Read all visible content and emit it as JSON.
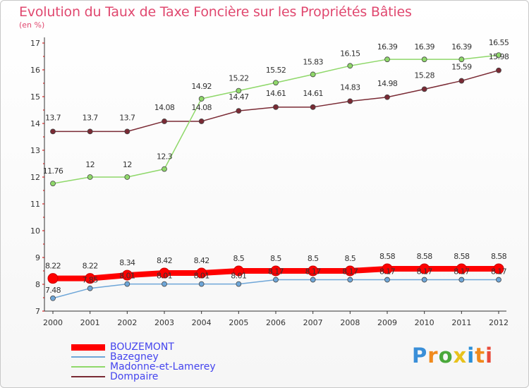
{
  "chart_data": {
    "type": "line",
    "title": "Evolution du Taux de Taxe Foncière sur les Propriétés Bâties",
    "subtitle": "(en %)",
    "x": [
      "2000",
      "2001",
      "2002",
      "2003",
      "2004",
      "2005",
      "2006",
      "2007",
      "2008",
      "2009",
      "2010",
      "2011",
      "2012"
    ],
    "ylim": [
      7,
      17
    ],
    "yticks": [
      "7",
      "8",
      "9",
      "10",
      "11",
      "12",
      "13",
      "14",
      "15",
      "16",
      "17"
    ],
    "grid": false,
    "legend_position": "bottom-left",
    "series": [
      {
        "name": "BOUZEMONT",
        "color": "#ff0000",
        "values": [
          8.22,
          8.22,
          8.34,
          8.42,
          8.42,
          8.5,
          8.5,
          8.5,
          8.5,
          8.58,
          8.58,
          8.58,
          8.58
        ],
        "labels": [
          "8.22",
          "8.22",
          "8.34",
          "8.42",
          "8.42",
          "8.5",
          "8.5",
          "8.5",
          "8.5",
          "8.58",
          "8.58",
          "8.58",
          "8.58"
        ]
      },
      {
        "name": "Bazegney",
        "color": "#6ea6d8",
        "values": [
          7.48,
          7.85,
          8.01,
          8.01,
          8.01,
          8.01,
          8.17,
          8.17,
          8.17,
          8.17,
          8.17,
          8.17,
          8.17
        ],
        "labels": [
          "7.48",
          "7.85",
          "8.01",
          "8.01",
          "8.01",
          "8.01",
          "8.17",
          "8.17",
          "8.17",
          "8.17",
          "8.17",
          "8.17",
          "8.17"
        ]
      },
      {
        "name": "Madonne-et-Lamerey",
        "color": "#8fd86a",
        "values": [
          11.76,
          12,
          12,
          12.3,
          14.92,
          15.22,
          15.52,
          15.83,
          16.15,
          16.39,
          16.39,
          16.39,
          16.55
        ],
        "labels": [
          "11.76",
          "12",
          "12",
          "12.3",
          "14.92",
          "15.22",
          "15.52",
          "15.83",
          "16.15",
          "16.39",
          "16.39",
          "16.39",
          "16.55"
        ]
      },
      {
        "name": "Dompaire",
        "color": "#7a2a34",
        "values": [
          13.7,
          13.7,
          13.7,
          14.08,
          14.08,
          14.47,
          14.61,
          14.61,
          14.83,
          14.98,
          15.28,
          15.59,
          15.98
        ],
        "labels": [
          "13.7",
          "13.7",
          "13.7",
          "14.08",
          "14.08",
          "14.47",
          "14.61",
          "14.61",
          "14.83",
          "14.98",
          "15.28",
          "15.59",
          "15.98"
        ]
      }
    ]
  },
  "legend": {
    "items": [
      {
        "name": "BOUZEMONT",
        "color": "#ff0000",
        "text_color": "#4444ee"
      },
      {
        "name": "Bazegney",
        "color": "#6ea6d8",
        "text_color": "#4444ee"
      },
      {
        "name": "Madonne-et-Lamerey",
        "color": "#8fd86a",
        "text_color": "#4444ee"
      },
      {
        "name": "Dompaire",
        "color": "#7a2a34",
        "text_color": "#4444ee"
      }
    ]
  },
  "logo": {
    "letters": [
      "P",
      "r",
      "o",
      "x",
      "i",
      "t",
      "i"
    ],
    "colors": [
      "#3a8fd8",
      "#f08a1c",
      "#4aa83a",
      "#e8c21c",
      "#2a8fd8",
      "#f08a1c",
      "#e84a3a"
    ],
    "icon": "proxiti-logo"
  }
}
